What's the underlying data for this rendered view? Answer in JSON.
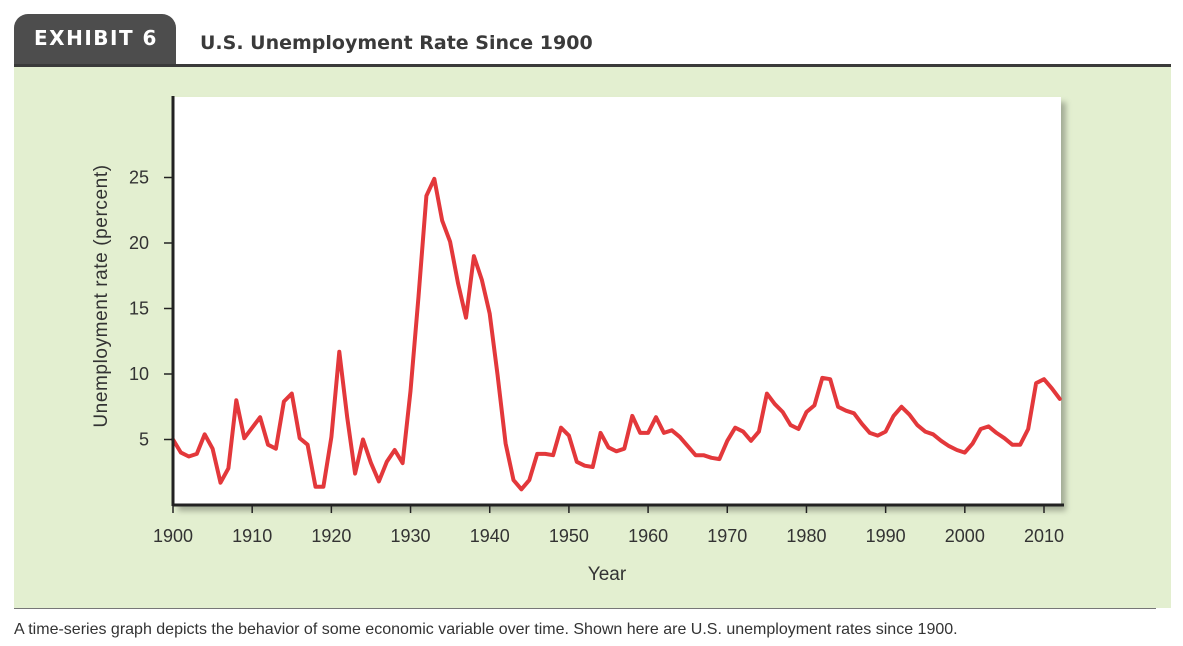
{
  "header": {
    "exhibit_label": "EXHIBIT 6",
    "title": "U.S. Unemployment Rate Since 1900"
  },
  "caption": "A time-series graph depicts the behavior of some economic variable over time. Shown here are U.S. unemployment rates since 1900.",
  "colors": {
    "line": "#e3383b",
    "panel": "#e3efd0",
    "tab": "#4d4d4d"
  },
  "chart_data": {
    "type": "line",
    "xlabel": "Year",
    "ylabel": "Unemployment rate (percent)",
    "xlim": [
      1900,
      2012
    ],
    "ylim": [
      0,
      30
    ],
    "x_ticks": [
      1900,
      1910,
      1920,
      1930,
      1940,
      1950,
      1960,
      1970,
      1980,
      1990,
      2000,
      2010
    ],
    "y_ticks": [
      5,
      10,
      15,
      20,
      25
    ],
    "grid": false,
    "series": [
      {
        "x": [
          1900,
          1901,
          1902,
          1903,
          1904,
          1905,
          1906,
          1907,
          1908,
          1909,
          1910,
          1911,
          1912,
          1913,
          1914,
          1915,
          1916,
          1917,
          1918,
          1919,
          1920,
          1921,
          1922,
          1923,
          1924,
          1925,
          1926,
          1927,
          1928,
          1929,
          1930,
          1931,
          1932,
          1933,
          1934,
          1935,
          1936,
          1937,
          1938,
          1939,
          1940,
          1941,
          1942,
          1943,
          1944,
          1945,
          1946,
          1947,
          1948,
          1949,
          1950,
          1951,
          1952,
          1953,
          1954,
          1955,
          1956,
          1957,
          1958,
          1959,
          1960,
          1961,
          1962,
          1963,
          1964,
          1965,
          1966,
          1967,
          1968,
          1969,
          1970,
          1971,
          1972,
          1973,
          1974,
          1975,
          1976,
          1977,
          1978,
          1979,
          1980,
          1981,
          1982,
          1983,
          1984,
          1985,
          1986,
          1987,
          1988,
          1989,
          1990,
          1991,
          1992,
          1993,
          1994,
          1995,
          1996,
          1997,
          1998,
          1999,
          2000,
          2001,
          2002,
          2003,
          2004,
          2005,
          2006,
          2007,
          2008,
          2009,
          2010,
          2011,
          2012
        ],
        "values": [
          5.0,
          4.0,
          3.7,
          3.9,
          5.4,
          4.3,
          1.7,
          2.8,
          8.0,
          5.1,
          5.9,
          6.7,
          4.6,
          4.3,
          7.9,
          8.5,
          5.1,
          4.6,
          1.4,
          1.4,
          5.2,
          11.7,
          6.7,
          2.4,
          5.0,
          3.2,
          1.8,
          3.3,
          4.2,
          3.2,
          8.7,
          15.9,
          23.6,
          24.9,
          21.7,
          20.1,
          16.9,
          14.3,
          19.0,
          17.2,
          14.6,
          9.9,
          4.7,
          1.9,
          1.2,
          1.9,
          3.9,
          3.9,
          3.8,
          5.9,
          5.3,
          3.3,
          3.0,
          2.9,
          5.5,
          4.4,
          4.1,
          4.3,
          6.8,
          5.5,
          5.5,
          6.7,
          5.5,
          5.7,
          5.2,
          4.5,
          3.8,
          3.8,
          3.6,
          3.5,
          4.9,
          5.9,
          5.6,
          4.9,
          5.6,
          8.5,
          7.7,
          7.1,
          6.1,
          5.8,
          7.1,
          7.6,
          9.7,
          9.6,
          7.5,
          7.2,
          7.0,
          6.2,
          5.5,
          5.3,
          5.6,
          6.8,
          7.5,
          6.9,
          6.1,
          5.6,
          5.4,
          4.9,
          4.5,
          4.2,
          4.0,
          4.7,
          5.8,
          6.0,
          5.5,
          5.1,
          4.6,
          4.6,
          5.8,
          9.3,
          9.6,
          8.9,
          8.1
        ]
      }
    ]
  }
}
